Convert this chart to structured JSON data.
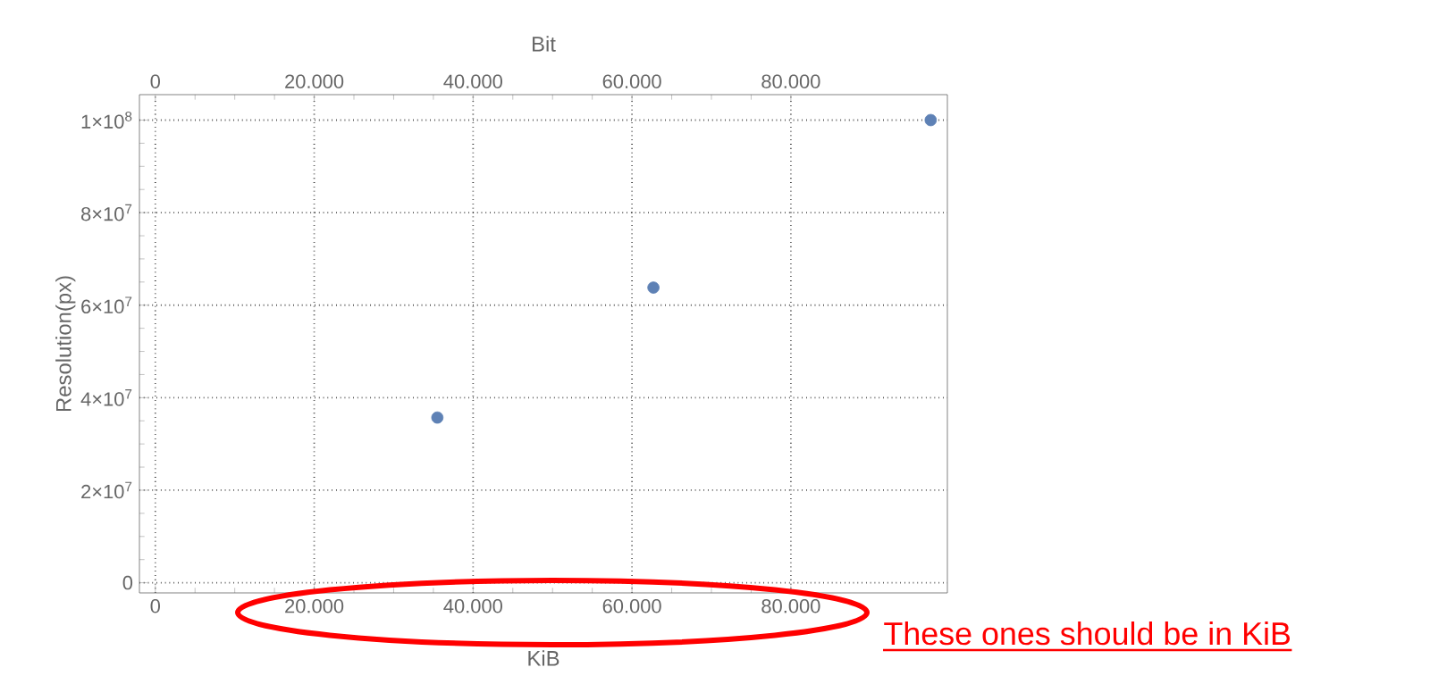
{
  "chart_data": {
    "type": "scatter",
    "xlabel": "KiB",
    "x2label": "Bit",
    "ylabel": "Resolution(px)",
    "x": [
      35500,
      62700,
      97600
    ],
    "series": [
      {
        "color": "#5e81b5",
        "values": [
          35700000,
          63800000,
          100000000
        ]
      }
    ],
    "xlim": [
      -2000,
      99700
    ],
    "xticks": [
      0,
      {
        "value": 20000,
        "label": "20.000"
      },
      {
        "value": 40000,
        "label": "40.000"
      },
      {
        "value": 60000,
        "label": "60.000"
      },
      {
        "value": 80000,
        "label": "80.000"
      }
    ],
    "x2lim": [
      -2000,
      99700
    ],
    "x2ticks": [
      0,
      {
        "value": 20000,
        "label": "20.000"
      },
      {
        "value": 40000,
        "label": "40.000"
      },
      {
        "value": 60000,
        "label": "60.000"
      },
      {
        "value": 80000,
        "label": "80.000"
      }
    ],
    "ylim": [
      -2200000,
      105500000
    ],
    "yticks": [
      0,
      {
        "value": 20000000,
        "label": "2×10$^{7}$"
      },
      {
        "value": 40000000,
        "label": "4×10$^{7}$"
      },
      {
        "value": 60000000,
        "label": "6×10$^{7}$"
      },
      {
        "value": 80000000,
        "label": "8×10$^{7}$"
      },
      {
        "value": 100000000,
        "label": "1×10$^{8}$"
      }
    ],
    "grid": true,
    "annotations": [
      "These ones should be in KiB"
    ]
  }
}
